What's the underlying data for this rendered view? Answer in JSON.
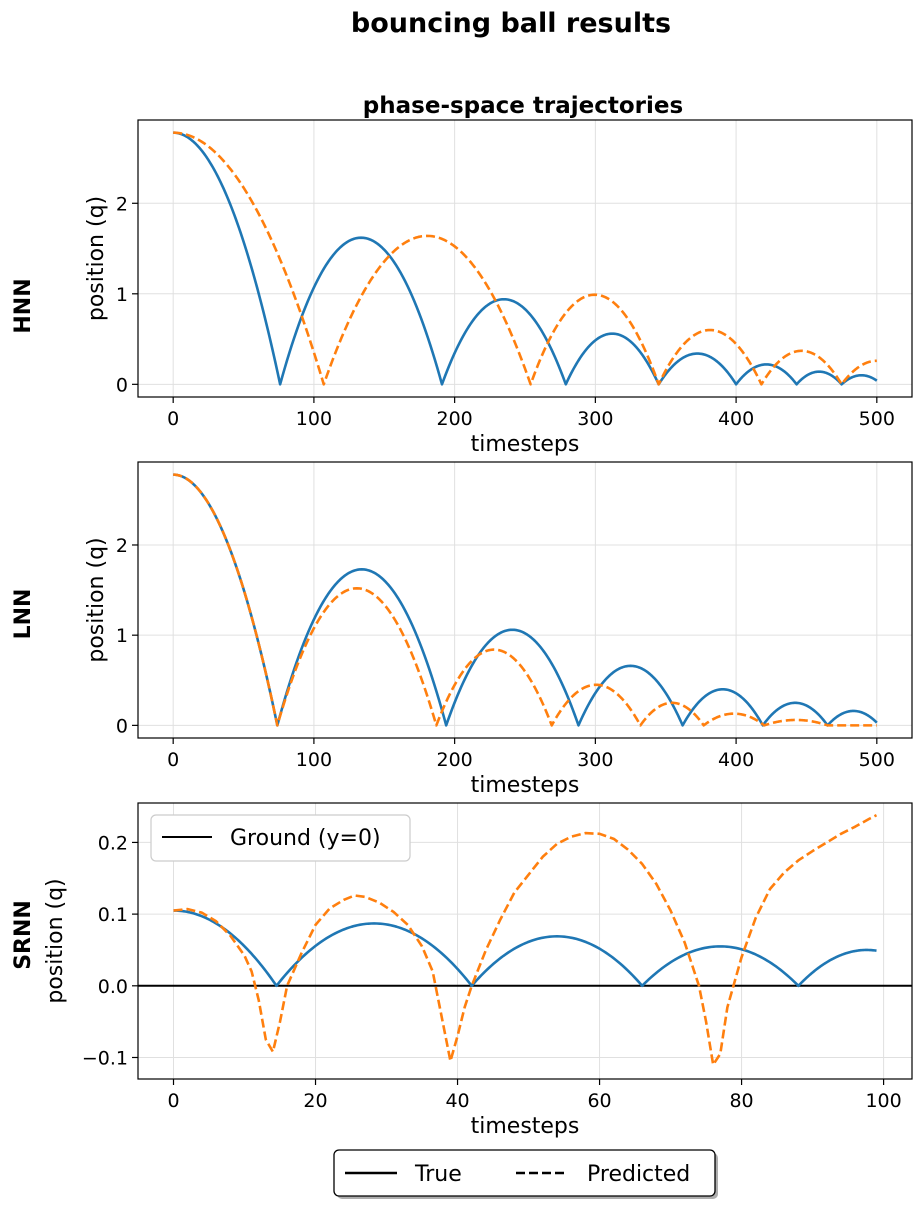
{
  "suptitle": "bouncing ball results",
  "bottom_legend": {
    "true_label": "True",
    "predicted_label": "Predicted"
  },
  "colors": {
    "true": "#1f77b4",
    "predicted": "#ff7f0e",
    "ground": "#000000",
    "grid": "#e0e0e0"
  },
  "chart_data": [
    {
      "type": "line",
      "row_label": "HNN",
      "title": "phase-space trajectories",
      "xlabel": "timesteps",
      "ylabel": "position (q)",
      "xlim": [
        -25,
        525
      ],
      "ylim": [
        -0.14,
        2.92
      ],
      "xticks": [
        0,
        100,
        200,
        300,
        400,
        500
      ],
      "yticks": [
        0,
        1,
        2
      ],
      "grid": true,
      "series": [
        {
          "name": "True",
          "style": "solid",
          "bounces": [
            [
              0,
              76,
              2.78,
              "down"
            ],
            [
              76,
              191,
              1.62
            ],
            [
              191,
              279,
              0.94
            ],
            [
              279,
              345,
              0.56
            ],
            [
              345,
              400,
              0.34
            ],
            [
              400,
              443,
              0.22
            ],
            [
              443,
              475,
              0.14
            ],
            [
              475,
              500,
              0.1,
              "open",
              0.04
            ]
          ]
        },
        {
          "name": "Predicted",
          "style": "dashed",
          "bounces": [
            [
              0,
              107,
              2.78,
              "down"
            ],
            [
              107,
              254,
              1.64
            ],
            [
              254,
              345,
              0.99
            ],
            [
              345,
              418,
              0.6
            ],
            [
              418,
              475,
              0.37
            ],
            [
              475,
              500,
              0.26,
              "up"
            ]
          ]
        }
      ]
    },
    {
      "type": "line",
      "row_label": "LNN",
      "title": "",
      "xlabel": "timesteps",
      "ylabel": "position (q)",
      "xlim": [
        -25,
        525
      ],
      "ylim": [
        -0.14,
        2.92
      ],
      "xticks": [
        0,
        100,
        200,
        300,
        400,
        500
      ],
      "yticks": [
        0,
        1,
        2
      ],
      "grid": true,
      "series": [
        {
          "name": "True",
          "style": "solid",
          "bounces": [
            [
              0,
              74,
              2.78,
              "down"
            ],
            [
              74,
              194,
              1.73
            ],
            [
              194,
              288,
              1.06
            ],
            [
              288,
              362,
              0.66
            ],
            [
              362,
              419,
              0.4
            ],
            [
              419,
              465,
              0.25
            ],
            [
              465,
              500,
              0.16,
              "open",
              0.03
            ]
          ]
        },
        {
          "name": "Predicted",
          "style": "dashed",
          "bounces": [
            [
              0,
              74,
              2.78,
              "down"
            ],
            [
              74,
              187,
              1.52
            ],
            [
              187,
              269,
              0.84
            ],
            [
              269,
              332,
              0.45
            ],
            [
              332,
              377,
              0.25
            ],
            [
              377,
              420,
              0.13
            ],
            [
              420,
              465,
              0.06
            ],
            [
              465,
              500,
              0.0,
              "flat"
            ]
          ]
        }
      ]
    },
    {
      "type": "line",
      "row_label": "SRNN",
      "title": "",
      "xlabel": "timesteps",
      "ylabel": "position (q)",
      "xlim": [
        -5,
        104
      ],
      "ylim": [
        -0.13,
        0.255
      ],
      "xticks": [
        0,
        20,
        40,
        60,
        80,
        100
      ],
      "yticks": [
        -0.1,
        0.0,
        0.1,
        0.2
      ],
      "ytick_labels": [
        "−0.1",
        "0.0",
        "0.1",
        "0.2"
      ],
      "grid": true,
      "legend": {
        "label": "Ground (y=0)",
        "location": "upper left"
      },
      "ground_y": 0.0,
      "series": [
        {
          "name": "True",
          "style": "solid",
          "bounces": [
            [
              0,
              14.5,
              0.105,
              "down"
            ],
            [
              14.5,
              42,
              0.087
            ],
            [
              42,
              66,
              0.069
            ],
            [
              66,
              88,
              0.055
            ],
            [
              88,
              99,
              0.05,
              "open",
              0.049
            ]
          ]
        },
        {
          "name": "Predicted",
          "style": "dashed",
          "points": [
            [
              0,
              0.105
            ],
            [
              2,
              0.107
            ],
            [
              4,
              0.102
            ],
            [
              6,
              0.09
            ],
            [
              8,
              0.07
            ],
            [
              10,
              0.042
            ],
            [
              11,
              0.02
            ],
            [
              12,
              -0.02
            ],
            [
              13,
              -0.075
            ],
            [
              14,
              -0.092
            ],
            [
              15,
              -0.05
            ],
            [
              16,
              0.0
            ],
            [
              18,
              0.045
            ],
            [
              20,
              0.085
            ],
            [
              22,
              0.108
            ],
            [
              24,
              0.12
            ],
            [
              25.5,
              0.126
            ],
            [
              27,
              0.124
            ],
            [
              29,
              0.116
            ],
            [
              31,
              0.103
            ],
            [
              33,
              0.085
            ],
            [
              35,
              0.055
            ],
            [
              36.5,
              0.02
            ],
            [
              37.5,
              -0.03
            ],
            [
              38.5,
              -0.08
            ],
            [
              39,
              -0.105
            ],
            [
              40,
              -0.07
            ],
            [
              41,
              -0.03
            ],
            [
              42,
              0.0
            ],
            [
              44,
              0.05
            ],
            [
              46,
              0.092
            ],
            [
              48,
              0.13
            ],
            [
              50,
              0.155
            ],
            [
              52,
              0.18
            ],
            [
              54,
              0.198
            ],
            [
              56,
              0.208
            ],
            [
              58,
              0.213
            ],
            [
              60,
              0.212
            ],
            [
              62,
              0.205
            ],
            [
              64,
              0.19
            ],
            [
              66,
              0.17
            ],
            [
              68,
              0.142
            ],
            [
              70,
              0.105
            ],
            [
              72,
              0.06
            ],
            [
              74,
              0.0
            ],
            [
              75,
              -0.05
            ],
            [
              76,
              -0.11
            ],
            [
              77,
              -0.095
            ],
            [
              78,
              -0.03
            ],
            [
              80,
              0.04
            ],
            [
              82,
              0.095
            ],
            [
              84,
              0.135
            ],
            [
              86,
              0.158
            ],
            [
              88,
              0.175
            ],
            [
              90,
              0.188
            ],
            [
              92,
              0.2
            ],
            [
              94,
              0.212
            ],
            [
              96,
              0.222
            ],
            [
              98,
              0.233
            ],
            [
              99,
              0.238
            ]
          ]
        }
      ]
    }
  ]
}
